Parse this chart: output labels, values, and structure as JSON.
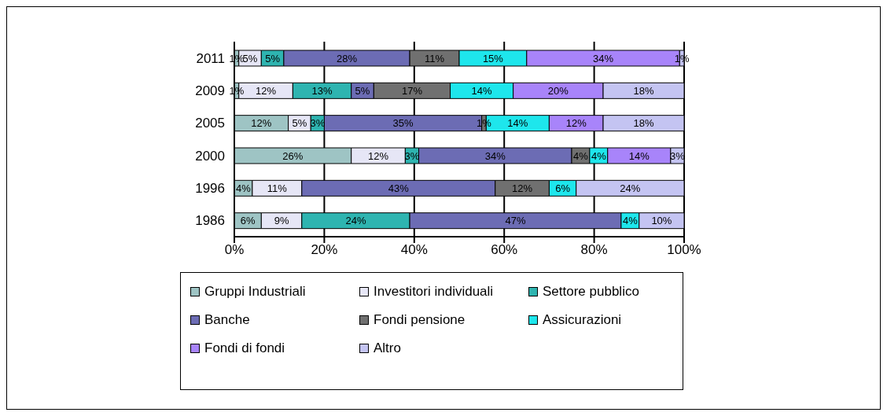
{
  "chart_data": {
    "type": "bar",
    "orientation": "horizontal",
    "stacked": true,
    "categories": [
      "2011",
      "2009",
      "2005",
      "2000",
      "1996",
      "1986"
    ],
    "series": [
      {
        "name": "Gruppi Industriali",
        "color": "#9ec4c4",
        "values": [
          1,
          1,
          12,
          26,
          4,
          6
        ],
        "value_labels": [
          "1%",
          "1%",
          "12%",
          "26%",
          "4%",
          "6%"
        ]
      },
      {
        "name": "Investitori individuali",
        "color": "#e6e6f6",
        "values": [
          5,
          12,
          5,
          12,
          11,
          9
        ],
        "value_labels": [
          "5%",
          "12%",
          "5%",
          "12%",
          "11%",
          "9%"
        ]
      },
      {
        "name": "Settore pubblico",
        "color": "#2eb4b0",
        "values": [
          5,
          13,
          3,
          3,
          null,
          24
        ],
        "value_labels": [
          "5%",
          "13%",
          "3%",
          "3%",
          null,
          "24%"
        ]
      },
      {
        "name": "Banche",
        "color": "#6c6cb4",
        "values": [
          28,
          5,
          35,
          34,
          43,
          47
        ],
        "value_labels": [
          "28%",
          "5%",
          "35%",
          "34%",
          "43%",
          "47%"
        ]
      },
      {
        "name": "Fondi pensione",
        "color": "#707070",
        "values": [
          11,
          17,
          1,
          4,
          12,
          null
        ],
        "value_labels": [
          "11%",
          "17%",
          "1%",
          "4%",
          "12%",
          null
        ]
      },
      {
        "name": "Assicurazioni",
        "color": "#1ee6ec",
        "values": [
          15,
          14,
          14,
          4,
          6,
          4
        ],
        "value_labels": [
          "15%",
          "14%",
          "14%",
          "4%",
          "6%",
          "4%"
        ]
      },
      {
        "name": "Fondi di fondi",
        "color": "#a884fa",
        "values": [
          34,
          20,
          12,
          14,
          null,
          null
        ],
        "value_labels": [
          "34%",
          "20%",
          "12%",
          "14%",
          null,
          null
        ]
      },
      {
        "name": "Altro",
        "color": "#c4c4f2",
        "values": [
          1,
          18,
          18,
          3,
          24,
          10
        ],
        "value_labels": [
          "1%",
          "18%",
          "18%",
          "3%",
          "24%",
          "10%"
        ]
      }
    ],
    "xlim": [
      0,
      100
    ],
    "xticks": [
      {
        "value": 0,
        "label": "0%"
      },
      {
        "value": 20,
        "label": "20%"
      },
      {
        "value": 40,
        "label": "40%"
      },
      {
        "value": 60,
        "label": "60%"
      },
      {
        "value": 80,
        "label": "80%"
      },
      {
        "value": 100,
        "label": "100%"
      }
    ],
    "grid": "x",
    "legend": "bottom"
  }
}
